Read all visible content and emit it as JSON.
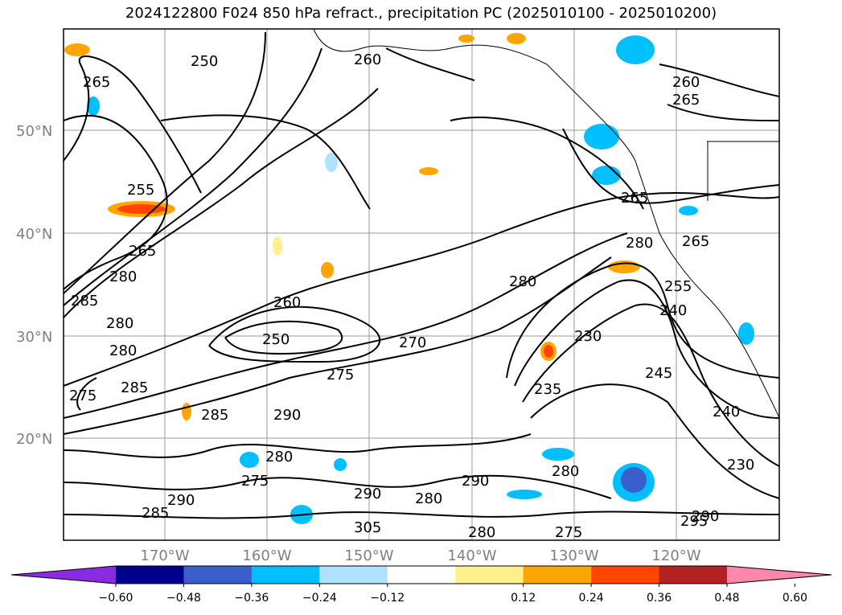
{
  "title": "2024122800 F024 850 hPa refract., precipitation PC (2025010100 - 2025010200)",
  "map": {
    "lon_labels": [
      "170°W",
      "160°W",
      "150°W",
      "140°W",
      "130°W",
      "120°W"
    ],
    "lat_labels": [
      "50°N",
      "40°N",
      "30°N",
      "20°N"
    ],
    "contour_labels": [
      "250",
      "255",
      "260",
      "265",
      "270",
      "275",
      "280",
      "285",
      "290",
      "295",
      "305",
      "230",
      "235",
      "240",
      "245"
    ]
  },
  "colorbar": {
    "ticks": [
      "−0.60",
      "−0.48",
      "−0.36",
      "−0.24",
      "−0.12",
      "0.12",
      "0.24",
      "0.36",
      "0.48",
      "0.60"
    ],
    "colors": [
      "#8a2be2",
      "#00008b",
      "#3a5fcd",
      "#00bfff",
      "#b0e2ff",
      "#ffffff",
      "#fff08c",
      "#ffa500",
      "#ff4500",
      "#b22222",
      "#ff88aa"
    ]
  }
}
